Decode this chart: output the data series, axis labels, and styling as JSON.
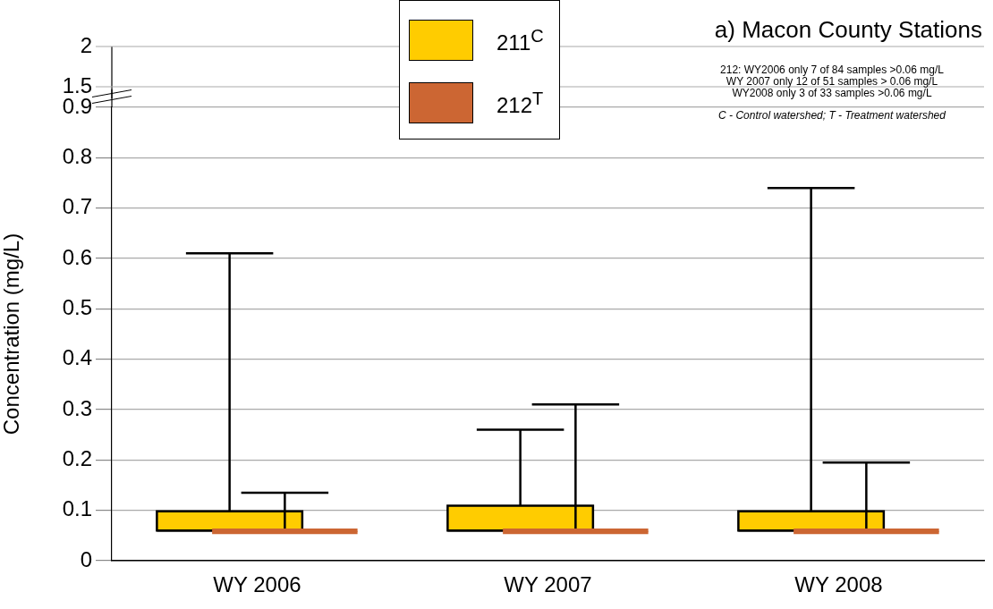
{
  "chart_data": [
    {
      "type": "other",
      "title": "a) Macon County Stations",
      "annotations": [
        "2",
        "1.5"
      ]
    },
    {
      "type": "box",
      "ylabel": "Concentration (mg/L)",
      "categories": [
        "WY 2006",
        "WY 2007",
        "WY 2008"
      ],
      "series": [
        {
          "name": "211$^{C}$",
          "color": "#ffcc00",
          "boxes": [
            {
              "low": 0.06,
              "q1": 0.06,
              "median": 0.06,
              "q3": 0.098,
              "high": 0.61
            },
            {
              "low": 0.06,
              "q1": 0.06,
              "median": 0.06,
              "q3": 0.109,
              "high": 0.26
            },
            {
              "low": 0.06,
              "q1": 0.06,
              "median": 0.06,
              "q3": 0.098,
              "high": 0.74
            }
          ]
        },
        {
          "name": "212$^{T}$",
          "color": "#cc6633",
          "boxes": [
            {
              "low": 0.053,
              "q1": 0.053,
              "median": 0.058,
              "q3": 0.064,
              "high": 0.135
            },
            {
              "low": 0.053,
              "q1": 0.053,
              "median": 0.058,
              "q3": 0.064,
              "high": 0.31
            },
            {
              "low": 0.053,
              "q1": 0.053,
              "median": 0.058,
              "q3": 0.064,
              "high": 0.195
            }
          ]
        }
      ],
      "ylim": [
        0,
        0.9
      ],
      "yticks": [
        0,
        0.1,
        0.2,
        0.3,
        0.4,
        0.5,
        0.6,
        0.7,
        0.8,
        0.9
      ],
      "grid": "y",
      "legend": "top",
      "annotations": [
        "212: WY2006 only 7 of 84 samples >0.06 mg/L",
        "WY 2007 only 12 of 51 samples > 0.06 mg/L",
        "WY2008 only 3 of 33 samples >0.06 mg/L",
        "C - Control watershed; T - Treatment watershed"
      ]
    }
  ]
}
